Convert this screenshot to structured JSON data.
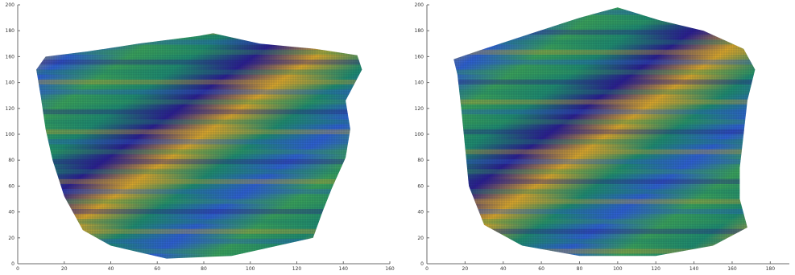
{
  "chart_data": [
    {
      "type": "heatmap",
      "title": "",
      "xlabel": "",
      "ylabel": "",
      "xlim": [
        0,
        160
      ],
      "ylim": [
        0,
        200
      ],
      "x_ticks": [
        "0",
        "20",
        "40",
        "60",
        "80",
        "100",
        "120",
        "140",
        "160"
      ],
      "y_ticks": [
        "0",
        "20",
        "40",
        "60",
        "80",
        "100",
        "120",
        "140",
        "160",
        "180",
        "200"
      ],
      "grid": false,
      "colormap": [
        "#2b1d8f",
        "#2f5fd0",
        "#1f8a6e",
        "#3aa05a",
        "#d9a52a"
      ],
      "surface_outline": [
        [
          12,
          160
        ],
        [
          30,
          164
        ],
        [
          52,
          170
        ],
        [
          78,
          176
        ],
        [
          84,
          178
        ],
        [
          104,
          170
        ],
        [
          128,
          166
        ],
        [
          146,
          161
        ],
        [
          148,
          150
        ],
        [
          141,
          126
        ],
        [
          143,
          104
        ],
        [
          141,
          82
        ],
        [
          135,
          58
        ],
        [
          131,
          40
        ],
        [
          127,
          20
        ],
        [
          92,
          6
        ],
        [
          64,
          4
        ],
        [
          40,
          14
        ],
        [
          28,
          26
        ],
        [
          20,
          52
        ],
        [
          15,
          80
        ],
        [
          12,
          104
        ],
        [
          10,
          128
        ],
        [
          8,
          150
        ]
      ]
    },
    {
      "type": "heatmap",
      "title": "",
      "xlabel": "",
      "ylabel": "",
      "xlim": [
        0,
        190
      ],
      "ylim": [
        0,
        200
      ],
      "x_ticks": [
        "0",
        "20",
        "40",
        "60",
        "80",
        "100",
        "120",
        "140",
        "160",
        "180"
      ],
      "y_ticks": [
        "0",
        "20",
        "40",
        "60",
        "80",
        "100",
        "120",
        "140",
        "160",
        "180",
        "200"
      ],
      "grid": false,
      "colormap": [
        "#2b1d8f",
        "#2f5fd0",
        "#1f8a6e",
        "#3aa05a",
        "#d9a52a"
      ],
      "surface_outline": [
        [
          14,
          158
        ],
        [
          30,
          166
        ],
        [
          55,
          178
        ],
        [
          80,
          190
        ],
        [
          100,
          198
        ],
        [
          122,
          188
        ],
        [
          145,
          180
        ],
        [
          166,
          166
        ],
        [
          172,
          150
        ],
        [
          168,
          126
        ],
        [
          166,
          100
        ],
        [
          164,
          74
        ],
        [
          164,
          50
        ],
        [
          168,
          28
        ],
        [
          150,
          14
        ],
        [
          120,
          6
        ],
        [
          80,
          6
        ],
        [
          50,
          14
        ],
        [
          30,
          30
        ],
        [
          22,
          60
        ],
        [
          20,
          90
        ],
        [
          18,
          120
        ],
        [
          16,
          146
        ]
      ]
    }
  ]
}
